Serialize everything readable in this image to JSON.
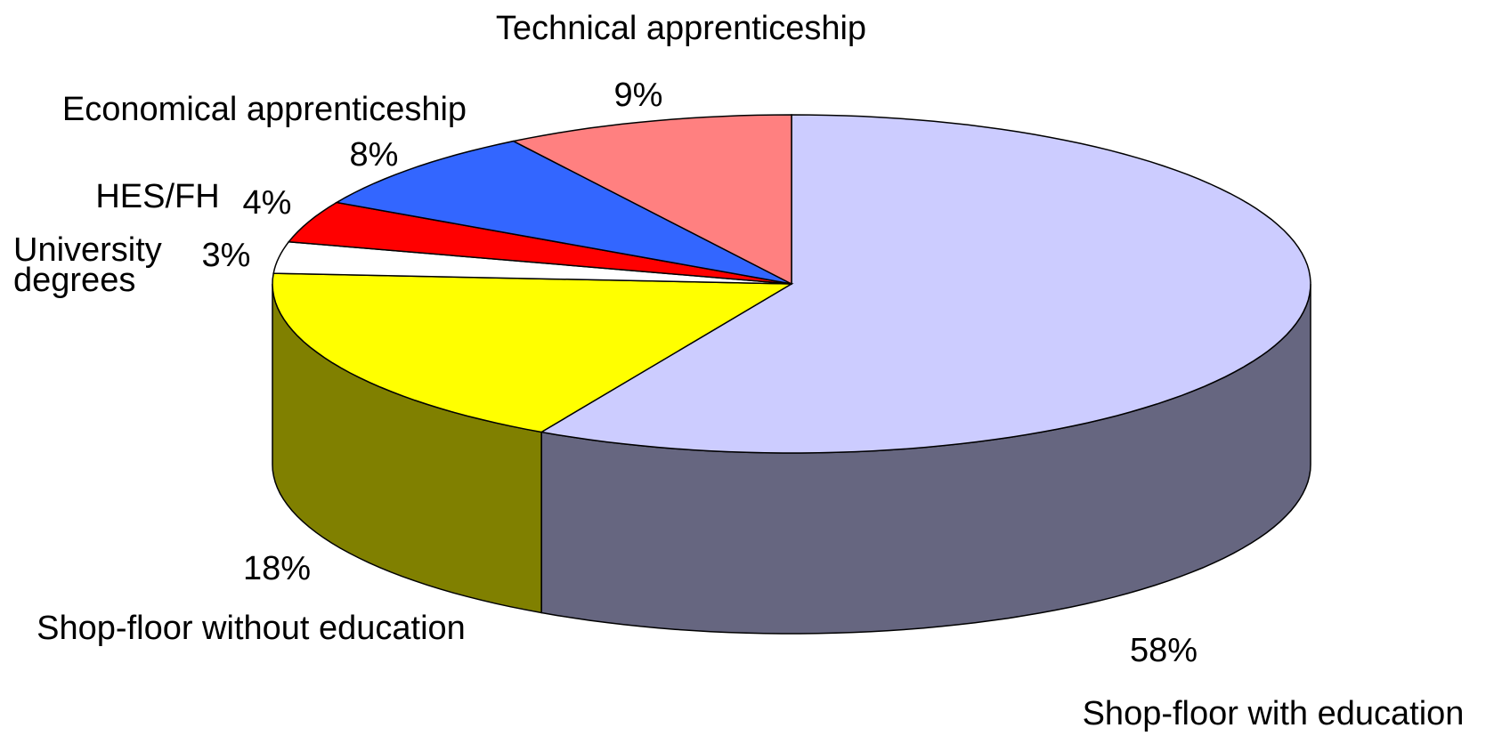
{
  "chart_data": {
    "type": "pie3d",
    "categories": [
      "Shop-floor with education",
      "Shop-floor without education",
      "University degrees",
      "HES/FH",
      "Economical apprenticeship",
      "Technical apprenticeship"
    ],
    "values": [
      58,
      18,
      3,
      4,
      8,
      9
    ],
    "value_labels": [
      "58%",
      "18%",
      "3%",
      "4%",
      "8%",
      "9%"
    ],
    "colors": [
      "#ccccff",
      "#ffff00",
      "#ffffff",
      "#ff0000",
      "#3366ff",
      "#ff8080"
    ]
  }
}
